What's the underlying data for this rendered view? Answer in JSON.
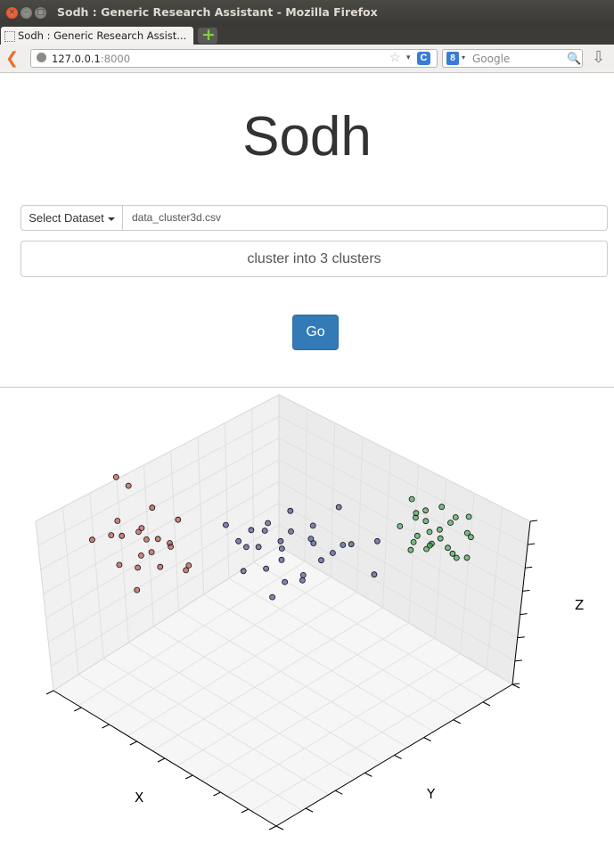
{
  "window": {
    "title": "Sodh : Generic Research Assistant - Mozilla Firefox",
    "close_glyph": "×",
    "minimize_glyph": "–",
    "maximize_glyph": "□"
  },
  "tab": {
    "label": "Sodh : Generic Research Assist...",
    "new_tab_glyph": "+"
  },
  "navbar": {
    "back_glyph": "❮",
    "url_host": "127.0.0.1",
    "url_port": ":8000",
    "star_glyph": "☆",
    "dropdown_glyph": "▾",
    "reload_glyph": "C",
    "search_engine_glyph": "8",
    "search_placeholder": "Google",
    "search_glyph": "🔍",
    "download_glyph": "⇩"
  },
  "page": {
    "heading": "Sodh",
    "dataset_button_label": "Select Dataset",
    "dataset_value": "data_cluster3d.csv",
    "query_text": "cluster into 3 clusters",
    "go_label": "Go"
  },
  "chart_data": {
    "type": "scatter",
    "projection": "3d",
    "title": "",
    "xlabel": "X",
    "ylabel": "Y",
    "zlabel": "Z",
    "grid": true,
    "series": [
      {
        "color": "#b03a2e",
        "points": [
          [
            -4.2,
            -3.1,
            4.5
          ],
          [
            -4.6,
            -2.2,
            3.1
          ],
          [
            -3.1,
            -3.9,
            2.8
          ],
          [
            -3.8,
            -2.4,
            1.6
          ],
          [
            -2.7,
            -3.6,
            1.2
          ],
          [
            -3.3,
            -3.0,
            2.2
          ],
          [
            -2.1,
            -4.2,
            0.9
          ],
          [
            -4.0,
            -3.5,
            1.9
          ],
          [
            -2.9,
            -2.8,
            3.6
          ],
          [
            -3.6,
            -1.9,
            0.8
          ],
          [
            -2.4,
            -3.3,
            2.0
          ],
          [
            -3.0,
            -4.1,
            1.5
          ],
          [
            -1.9,
            -3.0,
            2.6
          ],
          [
            -3.5,
            -2.7,
            0.6
          ],
          [
            -2.6,
            -2.3,
            1.4
          ],
          [
            -2.2,
            -3.7,
            3.1
          ],
          [
            -3.9,
            -4.4,
            2.4
          ],
          [
            -1.6,
            -2.6,
            1.1
          ],
          [
            -2.8,
            -1.8,
            2.3
          ],
          [
            -2.0,
            -2.1,
            0.7
          ],
          [
            -3.4,
            -3.8,
            3.3
          ],
          [
            -1.8,
            -3.5,
            1.8
          ]
        ]
      },
      {
        "color": "#2e3b8f",
        "points": [
          [
            0.2,
            -0.9,
            1.2
          ],
          [
            -0.6,
            -0.2,
            2.1
          ],
          [
            0.9,
            -1.3,
            0.5
          ],
          [
            -1.1,
            0.4,
            1.7
          ],
          [
            0.5,
            0.8,
            2.4
          ],
          [
            1.3,
            -0.4,
            1.0
          ],
          [
            -0.3,
            -1.6,
            2.8
          ],
          [
            0.7,
            0.2,
            0.4
          ],
          [
            -0.9,
            -0.7,
            1.4
          ],
          [
            1.6,
            0.6,
            1.9
          ],
          [
            0.1,
            1.2,
            0.9
          ],
          [
            -1.4,
            -1.1,
            2.5
          ],
          [
            1.1,
            1.5,
            1.3
          ],
          [
            -0.2,
            0.5,
            2.9
          ],
          [
            0.4,
            -0.3,
            0.2
          ],
          [
            1.9,
            1.1,
            2.2
          ],
          [
            -0.7,
            1.0,
            1.1
          ],
          [
            0.8,
            -0.8,
            2.6
          ],
          [
            -1.2,
            0.1,
            0.6
          ],
          [
            1.4,
            0.3,
            1.6
          ],
          [
            0.0,
            -0.1,
            1.9
          ],
          [
            0.6,
            1.8,
            2.7
          ],
          [
            -0.5,
            -1.2,
            0.8
          ],
          [
            1.8,
            2.3,
            1.4
          ],
          [
            2.4,
            1.6,
            0.6
          ],
          [
            -1.0,
            -0.4,
            2.0
          ],
          [
            0.3,
            0.9,
            1.5
          ],
          [
            1.0,
            -1.0,
            2.3
          ]
        ]
      },
      {
        "color": "#2e9e3f",
        "points": [
          [
            3.2,
            2.6,
            3.4
          ],
          [
            2.8,
            3.4,
            2.9
          ],
          [
            3.6,
            2.9,
            2.1
          ],
          [
            3.1,
            3.8,
            3.0
          ],
          [
            2.6,
            2.5,
            2.6
          ],
          [
            3.9,
            3.3,
            1.8
          ],
          [
            3.4,
            3.0,
            2.5
          ],
          [
            2.9,
            3.9,
            1.6
          ],
          [
            3.7,
            2.2,
            3.1
          ],
          [
            3.3,
            4.2,
            2.3
          ],
          [
            4.1,
            2.8,
            2.8
          ],
          [
            2.5,
            3.1,
            3.5
          ],
          [
            3.8,
            3.6,
            1.2
          ],
          [
            3.0,
            2.7,
            1.9
          ],
          [
            4.3,
            3.9,
            2.2
          ],
          [
            3.5,
            4.5,
            1.4
          ],
          [
            2.7,
            3.5,
            2.2
          ],
          [
            3.9,
            2.4,
            2.4
          ],
          [
            3.2,
            3.2,
            1.5
          ],
          [
            4.0,
            4.1,
            2.9
          ],
          [
            3.6,
            3.7,
            2.6
          ],
          [
            2.9,
            2.9,
            3.2
          ],
          [
            4.4,
            3.2,
            1.7
          ],
          [
            3.3,
            2.3,
            2.0
          ],
          [
            3.7,
            4.3,
            0.4
          ]
        ]
      }
    ]
  }
}
